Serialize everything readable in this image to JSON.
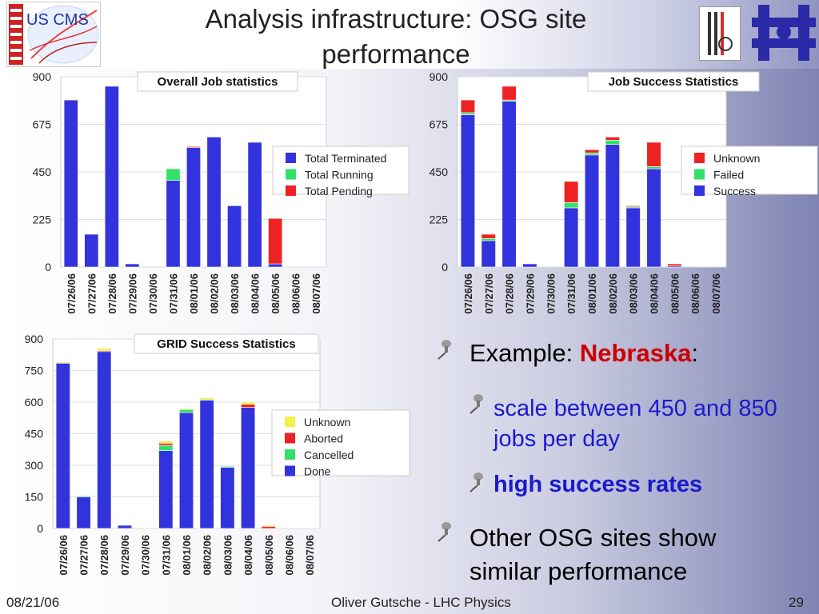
{
  "slide": {
    "title": "Analysis infrastructure: OSG site performance",
    "logos": {
      "left": "US CMS"
    },
    "footer": {
      "date": "08/21/06",
      "author": "Oliver Gutsche - LHC Physics",
      "page": "29"
    }
  },
  "bullets": {
    "b1_prefix": "Example: ",
    "b1_highlight": "Nebraska",
    "b1_suffix": ":",
    "b2": "scale between 450 and 850 jobs per day",
    "b3": "high success rates",
    "b4": "Other OSG sites show similar performance"
  },
  "colors": {
    "blue": "#3333dd",
    "green": "#33e06a",
    "red": "#ee2222",
    "yellow": "#f3f04a",
    "nebraska": "#cc0000",
    "subbullet": "#1a1acc"
  },
  "chart_data": [
    {
      "id": "overall",
      "type": "bar",
      "stacked": true,
      "title": "Overall Job statistics",
      "ylim": [
        0,
        900
      ],
      "yticks": [
        0,
        225,
        450,
        675,
        900
      ],
      "categories": [
        "07/26/06",
        "07/27/06",
        "07/28/06",
        "07/29/06",
        "07/30/06",
        "07/31/06",
        "08/01/06",
        "08/02/06",
        "08/03/06",
        "08/04/06",
        "08/05/06",
        "08/06/06",
        "08/07/06"
      ],
      "series": [
        {
          "name": "Total Terminated",
          "color": "#3333dd",
          "values": [
            790,
            155,
            855,
            15,
            0,
            410,
            565,
            615,
            290,
            590,
            15,
            0,
            0
          ]
        },
        {
          "name": "Total Running",
          "color": "#33e06a",
          "values": [
            0,
            0,
            0,
            0,
            0,
            55,
            0,
            0,
            0,
            0,
            0,
            0,
            0
          ]
        },
        {
          "name": "Total Pending",
          "color": "#ee2222",
          "values": [
            0,
            0,
            0,
            0,
            0,
            0,
            5,
            0,
            0,
            0,
            215,
            0,
            0
          ]
        }
      ],
      "legend": "right"
    },
    {
      "id": "success",
      "type": "bar",
      "stacked": true,
      "title": "Job Success Statistics",
      "ylim": [
        0,
        900
      ],
      "yticks": [
        0,
        225,
        450,
        675,
        900
      ],
      "categories": [
        "07/26/06",
        "07/27/06",
        "07/28/06",
        "07/29/06",
        "07/30/06",
        "07/31/06",
        "08/01/06",
        "08/02/06",
        "08/03/06",
        "08/04/06",
        "08/05/06",
        "08/06/06",
        "08/07/06"
      ],
      "series": [
        {
          "name": "Success",
          "color": "#3333dd",
          "values": [
            720,
            125,
            785,
            15,
            0,
            280,
            530,
            580,
            280,
            465,
            5,
            0,
            0
          ]
        },
        {
          "name": "Failed",
          "color": "#33e06a",
          "values": [
            10,
            10,
            5,
            0,
            0,
            25,
            10,
            20,
            5,
            10,
            0,
            0,
            0
          ]
        },
        {
          "name": "Unknown",
          "color": "#ee2222",
          "values": [
            60,
            20,
            65,
            0,
            0,
            100,
            15,
            15,
            5,
            115,
            10,
            0,
            0
          ]
        }
      ],
      "legend": "right"
    },
    {
      "id": "grid",
      "type": "bar",
      "stacked": true,
      "title": "GRID Success Statistics",
      "ylim": [
        0,
        900
      ],
      "yticks": [
        0,
        150,
        300,
        450,
        600,
        750,
        900
      ],
      "categories": [
        "07/26/06",
        "07/27/06",
        "07/28/06",
        "07/29/06",
        "07/30/06",
        "07/31/06",
        "08/01/06",
        "08/02/06",
        "08/03/06",
        "08/04/06",
        "08/05/06",
        "08/06/06",
        "08/07/06"
      ],
      "series": [
        {
          "name": "Done",
          "color": "#3333dd",
          "values": [
            785,
            150,
            840,
            15,
            0,
            370,
            550,
            610,
            290,
            575,
            0,
            0,
            0
          ]
        },
        {
          "name": "Cancelled",
          "color": "#33e06a",
          "values": [
            0,
            5,
            0,
            0,
            0,
            25,
            15,
            0,
            5,
            0,
            0,
            0,
            0
          ]
        },
        {
          "name": "Aborted",
          "color": "#ee2222",
          "values": [
            0,
            0,
            5,
            0,
            0,
            10,
            0,
            0,
            0,
            15,
            10,
            0,
            0
          ]
        },
        {
          "name": "Unknown",
          "color": "#f3f04a",
          "values": [
            5,
            0,
            10,
            0,
            0,
            10,
            5,
            10,
            0,
            10,
            5,
            0,
            0
          ]
        }
      ],
      "legend": "right"
    }
  ]
}
